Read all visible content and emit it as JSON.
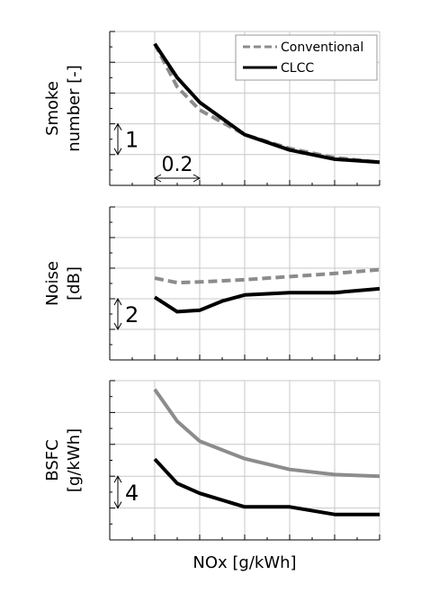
{
  "figure": {
    "xlabel": "NOx [g/kWh]"
  },
  "colors": {
    "conventional": "#8c8c8c",
    "clcc": "#000000",
    "grid": "#c8c8c8",
    "axis": "#000000"
  },
  "chart_data": [
    {
      "type": "line",
      "ylabel_lines": [
        "Smoke",
        "number [-]"
      ],
      "legend": {
        "placement": "top-right",
        "entries": [
          {
            "label": "Conventional",
            "style": "dashed",
            "color": "#8c8c8c"
          },
          {
            "label": "CLCC",
            "style": "solid",
            "color": "#000000"
          }
        ]
      },
      "annotations": {
        "y_scale": "1",
        "x_scale": "0.2"
      },
      "xlim": [
        0,
        1.2
      ],
      "ylim": [
        0,
        5
      ],
      "series": [
        {
          "name": "Conventional",
          "style": "dashed",
          "x": [
            0.2,
            0.3,
            0.4,
            0.6,
            0.8,
            1.0,
            1.2
          ],
          "y": [
            4.6,
            3.2,
            2.45,
            1.65,
            1.2,
            0.9,
            0.75
          ]
        },
        {
          "name": "CLCC",
          "style": "solid",
          "x": [
            0.2,
            0.3,
            0.4,
            0.6,
            0.8,
            1.0,
            1.2
          ],
          "y": [
            4.6,
            3.5,
            2.7,
            1.65,
            1.15,
            0.85,
            0.75
          ]
        }
      ]
    },
    {
      "type": "line",
      "ylabel_lines": [
        "Noise",
        "[dB]"
      ],
      "annotations": {
        "y_scale": "2"
      },
      "xlim": [
        0,
        1.2
      ],
      "ylim": [
        0,
        10
      ],
      "series": [
        {
          "name": "Conventional",
          "style": "dashed",
          "x": [
            0.2,
            0.3,
            0.4,
            0.6,
            0.8,
            1.0,
            1.2
          ],
          "y": [
            5.35,
            5.05,
            5.1,
            5.25,
            5.45,
            5.65,
            5.9
          ]
        },
        {
          "name": "CLCC",
          "style": "solid",
          "x": [
            0.2,
            0.3,
            0.4,
            0.5,
            0.6,
            0.8,
            1.0,
            1.2
          ],
          "y": [
            4.1,
            3.15,
            3.25,
            3.85,
            4.25,
            4.4,
            4.4,
            4.65
          ]
        }
      ]
    },
    {
      "type": "line",
      "ylabel_lines": [
        "BSFC",
        "[g/kWh]"
      ],
      "annotations": {
        "y_scale": "4"
      },
      "xlim": [
        0,
        1.2
      ],
      "ylim": [
        0,
        20
      ],
      "series": [
        {
          "name": "Conventional",
          "style": "solid",
          "x": [
            0.2,
            0.3,
            0.4,
            0.6,
            0.8,
            1.0,
            1.2
          ],
          "y": [
            18.9,
            14.9,
            12.4,
            10.2,
            8.85,
            8.2,
            8.0
          ]
        },
        {
          "name": "CLCC",
          "style": "solid",
          "x": [
            0.2,
            0.3,
            0.4,
            0.6,
            0.8,
            1.0,
            1.2
          ],
          "y": [
            10.15,
            7.1,
            5.85,
            4.15,
            4.15,
            3.2,
            3.2
          ]
        }
      ]
    }
  ]
}
